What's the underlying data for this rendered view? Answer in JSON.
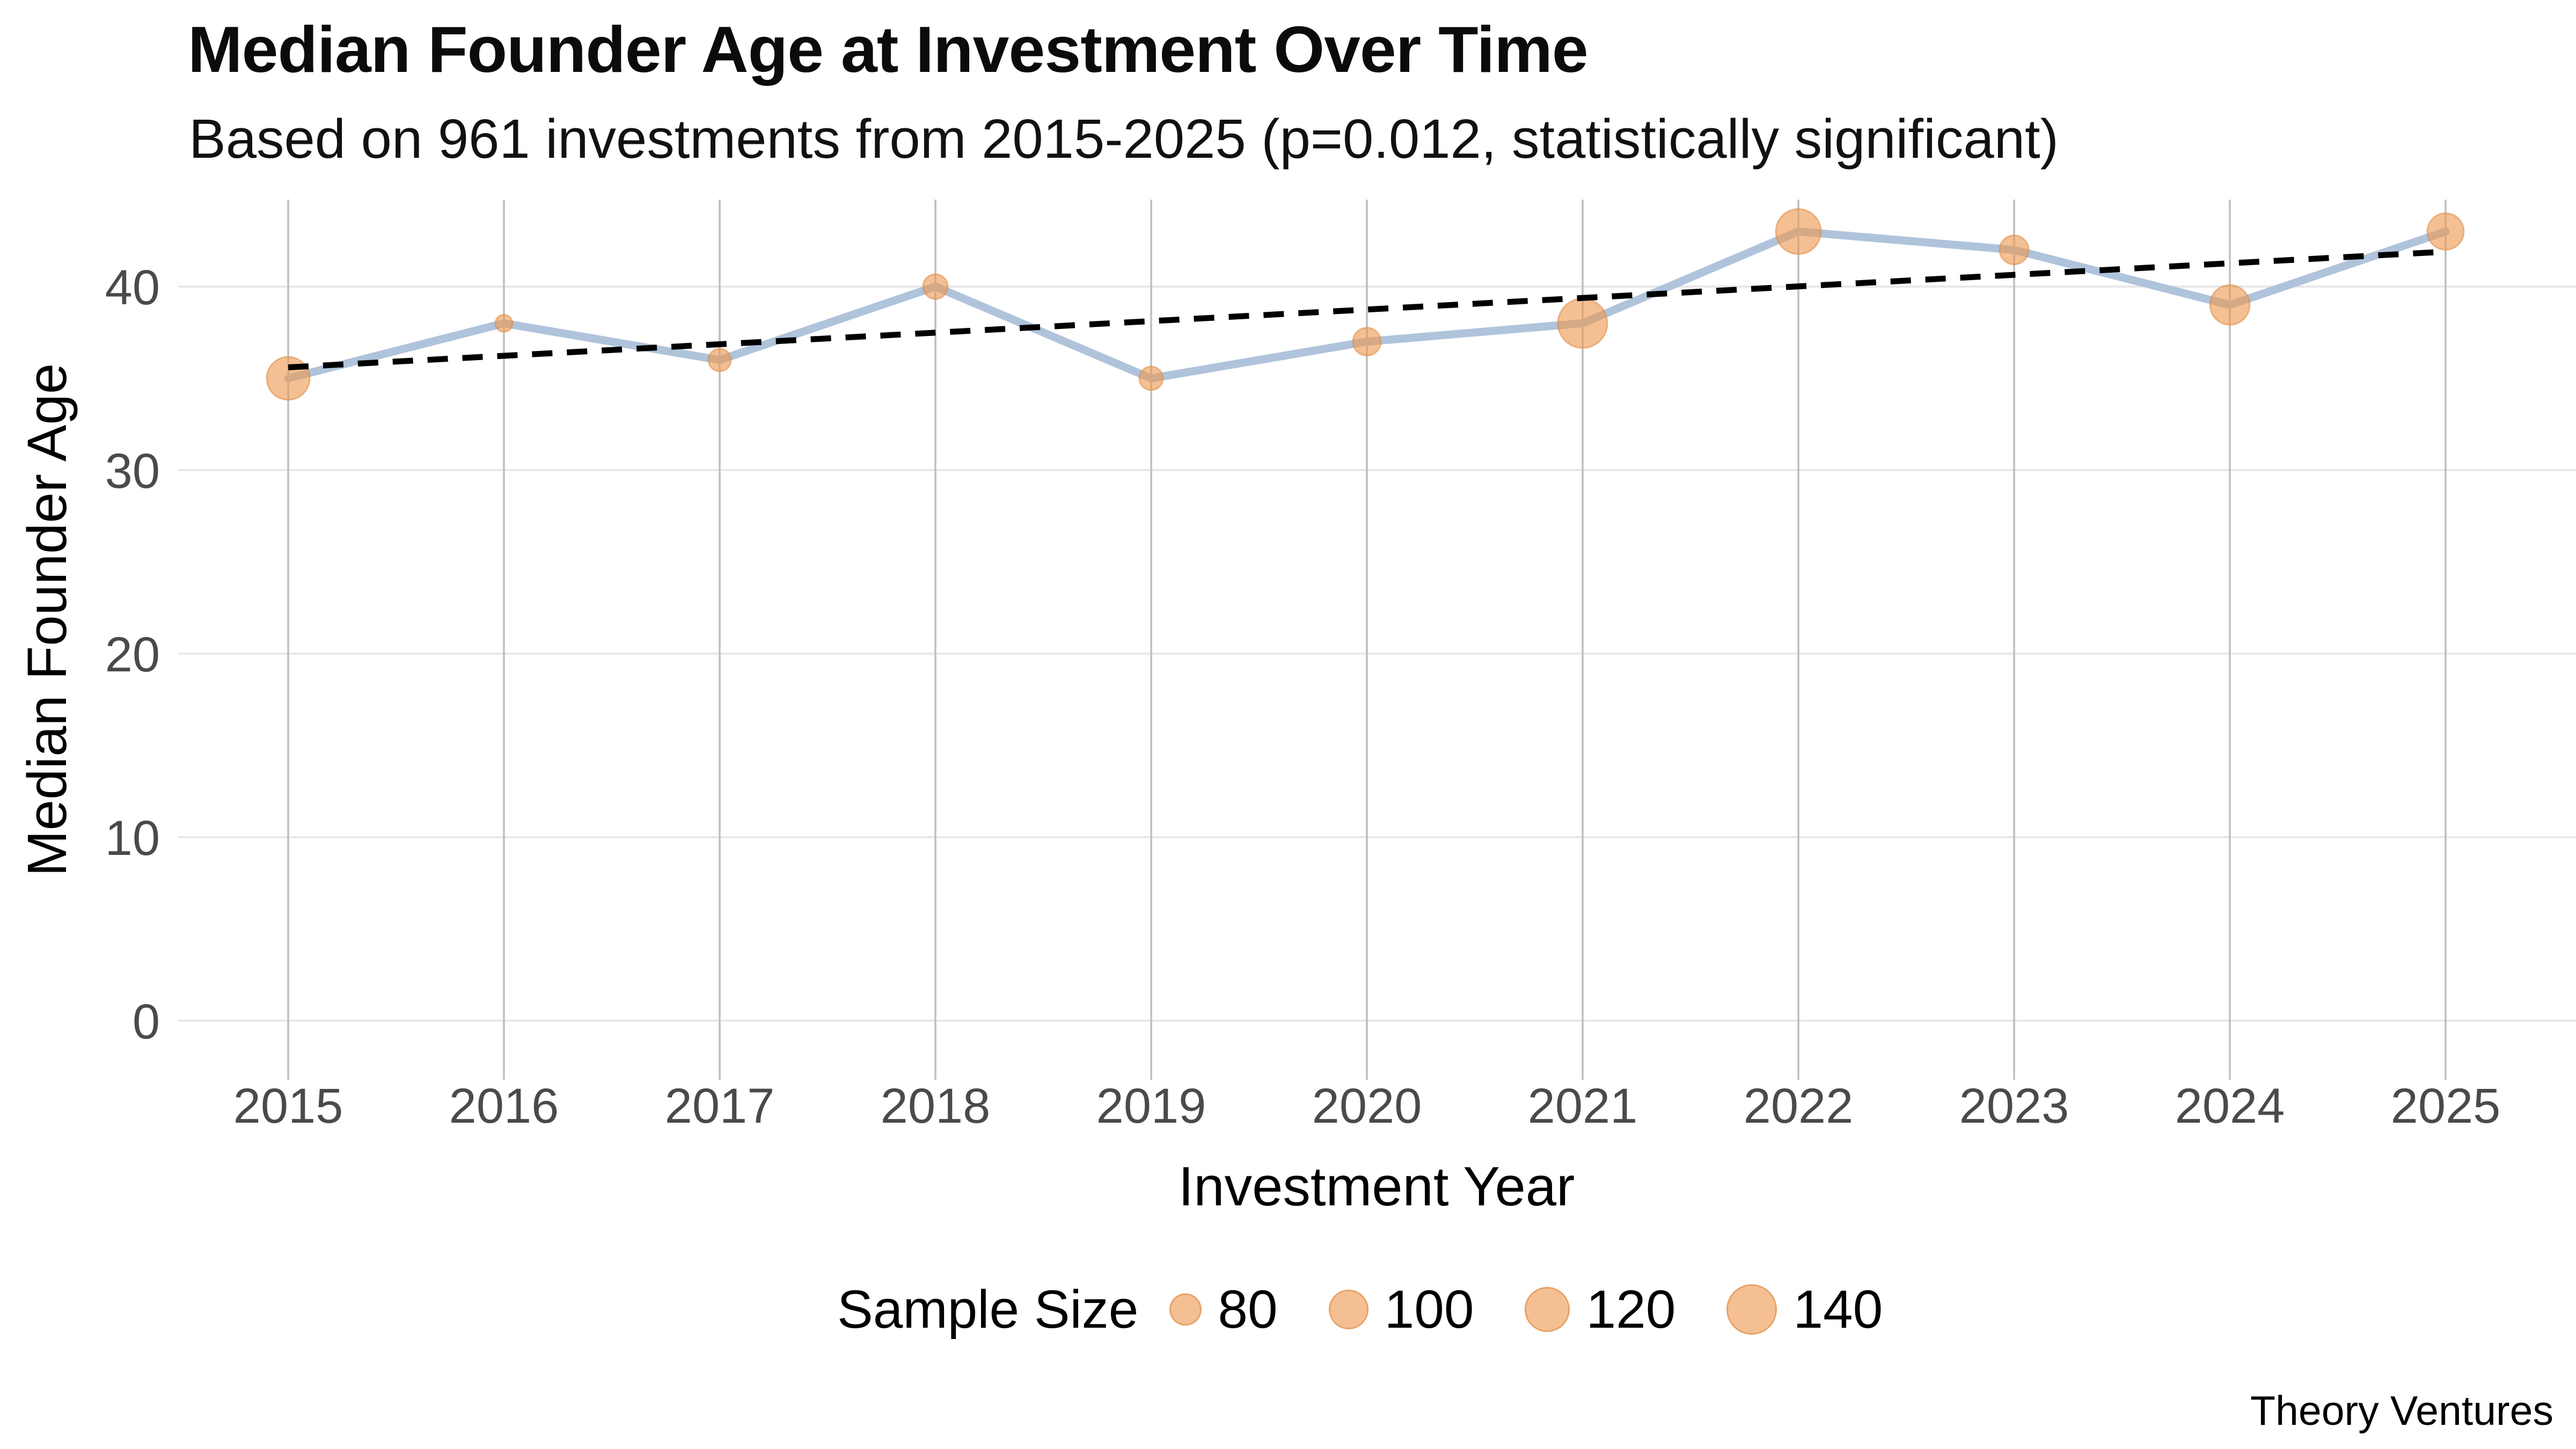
{
  "header": {
    "title": "Median Founder Age at Investment Over Time",
    "subtitle": "Based on 961 investments from 2015-2025 (p=0.012, statistically significant)"
  },
  "footer": {
    "brand": "Theory Ventures"
  },
  "chart_data": {
    "type": "line",
    "title": "Median Founder Age at Investment Over Time",
    "subtitle": "Based on 961 investments from 2015-2025 (p=0.012, statistically significant)",
    "xlabel": "Investment Year",
    "ylabel": "Median Founder Age",
    "x": [
      2015,
      2016,
      2017,
      2018,
      2019,
      2020,
      2021,
      2022,
      2023,
      2024,
      2025
    ],
    "yticks": [
      0,
      10,
      20,
      30,
      40
    ],
    "ylim": [
      0,
      46
    ],
    "grid": true,
    "legend_position": "bottom-center",
    "series": [
      {
        "name": "median-founder-age",
        "type": "line-with-bubbles",
        "values": [
          35,
          38,
          36,
          40,
          35,
          37,
          38,
          43,
          42,
          39,
          43
        ],
        "bubble_radius_px": [
          40,
          16,
          21,
          23,
          22,
          26,
          46,
          42,
          27,
          37,
          34
        ],
        "sample_size_approx": [
          115,
          25,
          40,
          50,
          45,
          60,
          150,
          130,
          60,
          100,
          85
        ]
      },
      {
        "name": "linear-trend",
        "type": "dashed-line",
        "x_range": [
          2015,
          2025
        ],
        "values_at_ends": [
          35.6,
          41.9
        ]
      }
    ],
    "legend": {
      "title": "Sample Size",
      "items": [
        {
          "label": "80",
          "radius_px": 30
        },
        {
          "label": "100",
          "radius_px": 37
        },
        {
          "label": "120",
          "radius_px": 42
        },
        {
          "label": "140",
          "radius_px": 47
        }
      ]
    },
    "colors": {
      "line": "#AFC3DB",
      "point_fill": "#EE9A50",
      "point_stroke": "#DE8A45",
      "trend": "#000000",
      "grid_horizontal": "#E8E8E8",
      "grid_vertical": "#BEBEBE",
      "tick_text": "#4a4a4a"
    }
  }
}
